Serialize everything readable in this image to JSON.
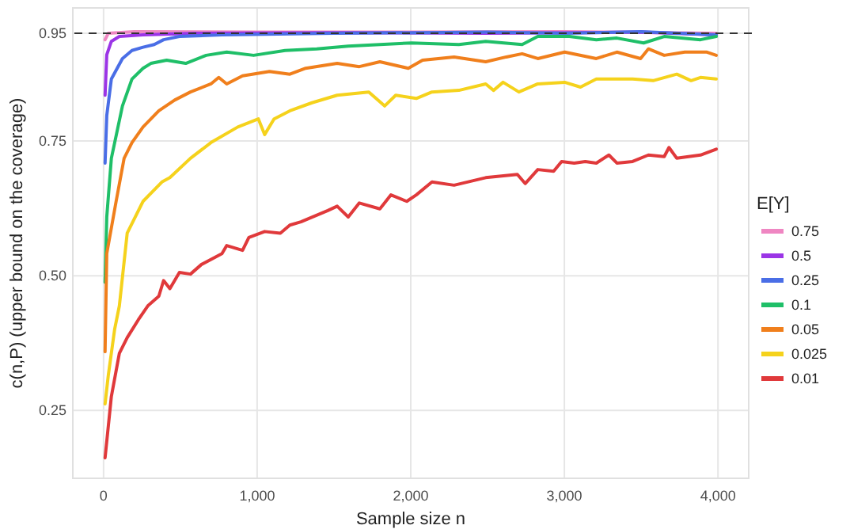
{
  "chart_data": {
    "type": "line",
    "xlabel": "Sample size n",
    "ylabel": "c(n,P) (upper bound on the coverage)",
    "legend_title": "E[Y]",
    "legend": "right",
    "grid": true,
    "line_style": "solid",
    "marker": "none",
    "xlim": [
      -200,
      4200
    ],
    "xticks": [
      {
        "value": 0,
        "label": "0"
      },
      {
        "value": 1000,
        "label": "1,000"
      },
      {
        "value": 2000,
        "label": "2,000"
      },
      {
        "value": 3000,
        "label": "3,000"
      },
      {
        "value": 4000,
        "label": "4,000"
      }
    ],
    "ylim": [
      0.124,
      0.997
    ],
    "yticks": [
      0.25,
      {
        "value": 0.5,
        "label": "0.50"
      },
      0.75,
      0.95
    ],
    "ref_lines": [
      {
        "axis": "y",
        "value": 0.95,
        "color": "#333333",
        "line_style": "dashed"
      }
    ],
    "series": [
      {
        "name": "0.75",
        "color": "#ef86c2",
        "x": [
          10,
          31,
          200,
          1000,
          2000,
          3000,
          3989
        ],
        "values": [
          0.938,
          0.95,
          0.953,
          0.952,
          0.952,
          0.953,
          0.95
        ]
      },
      {
        "name": "0.5",
        "color": "#9b35e6",
        "x": [
          10,
          21,
          51,
          103,
          257,
          600,
          1500,
          2500,
          3500,
          3989
        ],
        "values": [
          0.835,
          0.91,
          0.935,
          0.944,
          0.947,
          0.95,
          0.951,
          0.95,
          0.952,
          0.947
        ]
      },
      {
        "name": "0.25",
        "color": "#4a6ee6",
        "x": [
          10,
          21,
          51,
          123,
          185,
          257,
          330,
          391,
          494,
          771,
          1500,
          2500,
          3000,
          3500,
          3989
        ],
        "values": [
          0.709,
          0.797,
          0.865,
          0.903,
          0.918,
          0.924,
          0.929,
          0.938,
          0.944,
          0.947,
          0.95,
          0.952,
          0.95,
          0.953,
          0.947
        ]
      },
      {
        "name": "0.1",
        "color": "#1fbf68",
        "x": [
          10,
          21,
          51,
          123,
          185,
          257,
          308,
          411,
          535,
          668,
          802,
          977,
          1182,
          1388,
          1593,
          1799,
          2005,
          2313,
          2488,
          2725,
          2827,
          3033,
          3208,
          3342,
          3516,
          3650,
          3886,
          3989
        ],
        "values": [
          0.488,
          0.609,
          0.718,
          0.815,
          0.865,
          0.885,
          0.894,
          0.9,
          0.894,
          0.909,
          0.915,
          0.909,
          0.918,
          0.921,
          0.926,
          0.929,
          0.932,
          0.929,
          0.935,
          0.929,
          0.944,
          0.944,
          0.938,
          0.941,
          0.932,
          0.944,
          0.938,
          0.944
        ]
      },
      {
        "name": "0.05",
        "color": "#f07f1c",
        "x": [
          10,
          21,
          82,
          134,
          185,
          257,
          360,
          463,
          566,
          699,
          750,
          802,
          905,
          1080,
          1213,
          1316,
          1521,
          1665,
          1799,
          1984,
          2077,
          2282,
          2488,
          2622,
          2725,
          2827,
          3002,
          3208,
          3342,
          3496,
          3547,
          3650,
          3784,
          3928,
          3989
        ],
        "values": [
          0.359,
          0.541,
          0.638,
          0.718,
          0.747,
          0.776,
          0.806,
          0.826,
          0.841,
          0.856,
          0.868,
          0.856,
          0.871,
          0.879,
          0.874,
          0.885,
          0.894,
          0.888,
          0.897,
          0.885,
          0.9,
          0.906,
          0.897,
          0.906,
          0.912,
          0.903,
          0.915,
          0.903,
          0.915,
          0.903,
          0.921,
          0.909,
          0.915,
          0.915,
          0.909
        ]
      },
      {
        "name": "0.025",
        "color": "#f5d21c",
        "x": [
          10,
          31,
          72,
          103,
          123,
          154,
          257,
          380,
          432,
          566,
          699,
          874,
          1008,
          1049,
          1110,
          1213,
          1357,
          1521,
          1727,
          1830,
          1902,
          2036,
          2138,
          2313,
          2488,
          2539,
          2601,
          2704,
          2827,
          3002,
          3105,
          3208,
          3444,
          3578,
          3732,
          3825,
          3886,
          3989
        ],
        "values": [
          0.262,
          0.315,
          0.4,
          0.444,
          0.497,
          0.579,
          0.638,
          0.674,
          0.682,
          0.718,
          0.747,
          0.776,
          0.791,
          0.762,
          0.791,
          0.806,
          0.821,
          0.835,
          0.841,
          0.815,
          0.835,
          0.829,
          0.841,
          0.844,
          0.856,
          0.844,
          0.859,
          0.841,
          0.856,
          0.859,
          0.85,
          0.865,
          0.865,
          0.862,
          0.874,
          0.862,
          0.868,
          0.865
        ]
      },
      {
        "name": "0.01",
        "color": "#e0393b",
        "x": [
          10,
          51,
          103,
          154,
          226,
          288,
          360,
          391,
          432,
          494,
          566,
          638,
          771,
          802,
          905,
          946,
          1049,
          1151,
          1213,
          1285,
          1460,
          1521,
          1593,
          1665,
          1799,
          1871,
          1974,
          2036,
          2138,
          2282,
          2488,
          2694,
          2745,
          2827,
          2930,
          2982,
          3064,
          3136,
          3208,
          3290,
          3342,
          3444,
          3547,
          3650,
          3681,
          3732,
          3886,
          3989
        ],
        "values": [
          0.162,
          0.276,
          0.356,
          0.385,
          0.418,
          0.444,
          0.462,
          0.491,
          0.476,
          0.506,
          0.503,
          0.521,
          0.541,
          0.556,
          0.547,
          0.571,
          0.582,
          0.579,
          0.594,
          0.6,
          0.621,
          0.629,
          0.609,
          0.635,
          0.624,
          0.65,
          0.638,
          0.65,
          0.674,
          0.668,
          0.682,
          0.688,
          0.671,
          0.697,
          0.694,
          0.712,
          0.709,
          0.712,
          0.709,
          0.724,
          0.709,
          0.712,
          0.724,
          0.721,
          0.738,
          0.718,
          0.724,
          0.735
        ]
      }
    ]
  }
}
